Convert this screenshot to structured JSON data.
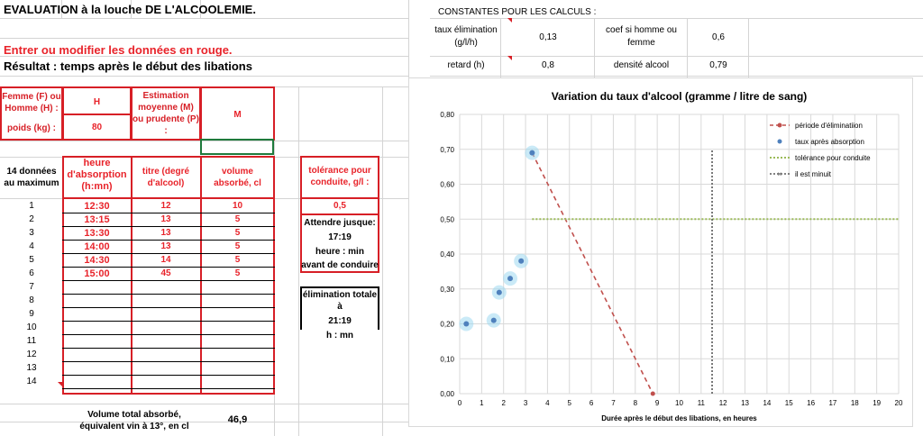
{
  "sheet": {
    "title": "EVALUATION à la louche DE L'ALCOOLEMIE.",
    "instruction": "Entrer ou modifier les données en rouge.",
    "result_label": "Résultat : temps après le début des libations"
  },
  "constants": {
    "header": "CONSTANTES POUR LES CALCULS :",
    "elim_label_1": "taux élimination",
    "elim_label_2": "(g/l/h)",
    "elim_value": "0,13",
    "coef_label_1": "coef si homme ou",
    "coef_label_2": "femme",
    "coef_value": "0,6",
    "retard_label": "retard (h)",
    "retard_value": "0,8",
    "densite_label": "densité alcool",
    "densite_value": "0,79"
  },
  "inputs": {
    "sex_label_1": "Femme (F) ou",
    "sex_label_2": "Homme (H) :",
    "sex_value": "H",
    "weight_label": "poids (kg) :",
    "weight_value": "80",
    "estimation_label_1": "Estimation",
    "estimation_label_2": "moyenne (M)",
    "estimation_label_3": "ou prudente (P)",
    "estimation_label_4": ":",
    "estimation_value": "M"
  },
  "table": {
    "rows_label_1": "14 données",
    "rows_label_2": "au maximum",
    "col_heure_1": "heure",
    "col_heure_2": "d'absorption",
    "col_heure_3": "(h:mn)",
    "col_titre_1": "titre (degré",
    "col_titre_2": "d'alcool)",
    "col_volume_1": "volume",
    "col_volume_2": "absorbé, cl",
    "rows": [
      {
        "n": "1",
        "heure": "12:30",
        "titre": "12",
        "volume": "10"
      },
      {
        "n": "2",
        "heure": "13:15",
        "titre": "13",
        "volume": "5"
      },
      {
        "n": "3",
        "heure": "13:30",
        "titre": "13",
        "volume": "5"
      },
      {
        "n": "4",
        "heure": "14:00",
        "titre": "13",
        "volume": "5"
      },
      {
        "n": "5",
        "heure": "14:30",
        "titre": "14",
        "volume": "5"
      },
      {
        "n": "6",
        "heure": "15:00",
        "titre": "45",
        "volume": "5"
      },
      {
        "n": "7",
        "heure": "",
        "titre": "",
        "volume": ""
      },
      {
        "n": "8",
        "heure": "",
        "titre": "",
        "volume": ""
      },
      {
        "n": "9",
        "heure": "",
        "titre": "",
        "volume": ""
      },
      {
        "n": "10",
        "heure": "",
        "titre": "",
        "volume": ""
      },
      {
        "n": "11",
        "heure": "",
        "titre": "",
        "volume": ""
      },
      {
        "n": "12",
        "heure": "",
        "titre": "",
        "volume": ""
      },
      {
        "n": "13",
        "heure": "",
        "titre": "",
        "volume": ""
      },
      {
        "n": "14",
        "heure": "",
        "titre": "",
        "volume": ""
      }
    ],
    "total_label_1": "Volume total absorbé,",
    "total_label_2": "équivalent vin à 13°, en cl",
    "total_value": "46,9"
  },
  "tolerance": {
    "label_1": "tolérance pour",
    "label_2": "conduite, g/l :",
    "value": "0,5",
    "wait_label": "Attendre jusque:",
    "wait_time": "17:19",
    "wait_unit_1": "heure : min",
    "wait_unit_2": "avant de conduire",
    "elim_label": "élimination totale à",
    "elim_time": "21:19",
    "elim_unit": "h : mn"
  },
  "chart_data": {
    "type": "scatter",
    "title": "Variation du taux d'alcool (gramme / litre de sang)",
    "xlabel": "Durée après le début des libations, en heures",
    "ylabel": "",
    "xlim": [
      0,
      20
    ],
    "ylim": [
      0,
      0.8
    ],
    "x_ticks": [
      "0",
      "1",
      "2",
      "3",
      "4",
      "5",
      "6",
      "7",
      "8",
      "9",
      "10",
      "11",
      "12",
      "13",
      "14",
      "15",
      "16",
      "17",
      "18",
      "19",
      "20"
    ],
    "y_ticks": [
      "0,00",
      "0,10",
      "0,20",
      "0,30",
      "0,40",
      "0,50",
      "0,60",
      "0,70",
      "0,80"
    ],
    "grid": true,
    "legend_position": "top-right",
    "series": [
      {
        "name": "période d'éliminatiion",
        "kind": "dashed-line",
        "color": "#c0504d",
        "points": [
          [
            3.3,
            0.69
          ],
          [
            8.8,
            0.0
          ]
        ]
      },
      {
        "name": "taux après absorption",
        "kind": "points",
        "color": "#4f81bd",
        "points": [
          [
            0.3,
            0.2
          ],
          [
            1.55,
            0.21
          ],
          [
            1.8,
            0.29
          ],
          [
            2.3,
            0.33
          ],
          [
            2.8,
            0.38
          ],
          [
            3.3,
            0.69
          ]
        ]
      },
      {
        "name": "tolérance pour conduite",
        "kind": "dotted-line",
        "color": "#9bbb59",
        "points": [
          [
            3.3,
            0.5
          ],
          [
            20,
            0.5
          ]
        ]
      },
      {
        "name": "il est minuit",
        "kind": "dotted-vertical",
        "color": "#595959",
        "points": [
          [
            11.5,
            0.0
          ],
          [
            11.5,
            0.7
          ]
        ]
      }
    ]
  }
}
